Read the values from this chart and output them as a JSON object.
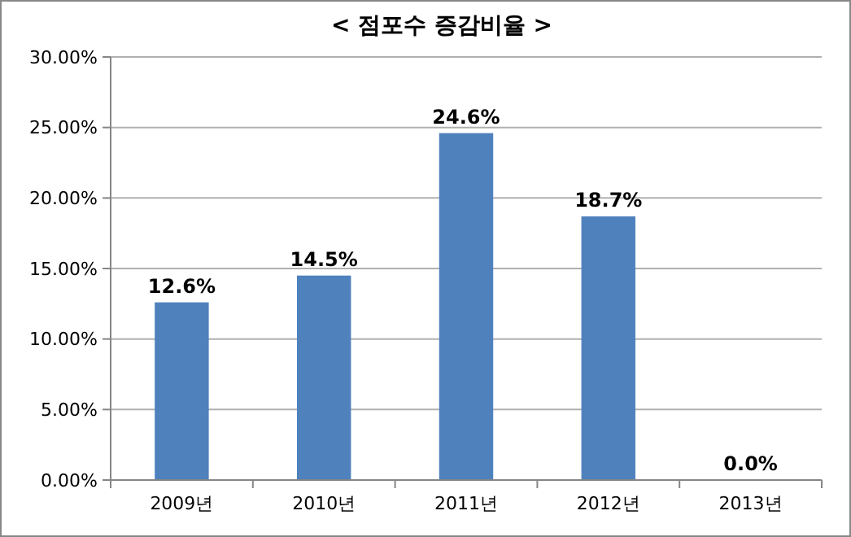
{
  "chart_data": {
    "type": "bar",
    "title": "< 점포수 증감비율 >",
    "categories": [
      "2009년",
      "2010년",
      "2011년",
      "2012년",
      "2013년"
    ],
    "values": [
      12.6,
      14.5,
      24.6,
      18.7,
      0.0
    ],
    "value_labels": [
      "12.6%",
      "14.5%",
      "24.6%",
      "18.7%",
      "0.0%"
    ],
    "color": "#4f81bd",
    "ylim": [
      0,
      30
    ],
    "yticks": [
      {
        "value": 0,
        "label": "0.00%"
      },
      {
        "value": 5,
        "label": "5.00%"
      },
      {
        "value": 10,
        "label": "10.00%"
      },
      {
        "value": 15,
        "label": "15.00%"
      },
      {
        "value": 20,
        "label": "20.00%"
      },
      {
        "value": 25,
        "label": "25.00%"
      },
      {
        "value": 30,
        "label": "30.00%"
      }
    ],
    "grid": "y"
  }
}
